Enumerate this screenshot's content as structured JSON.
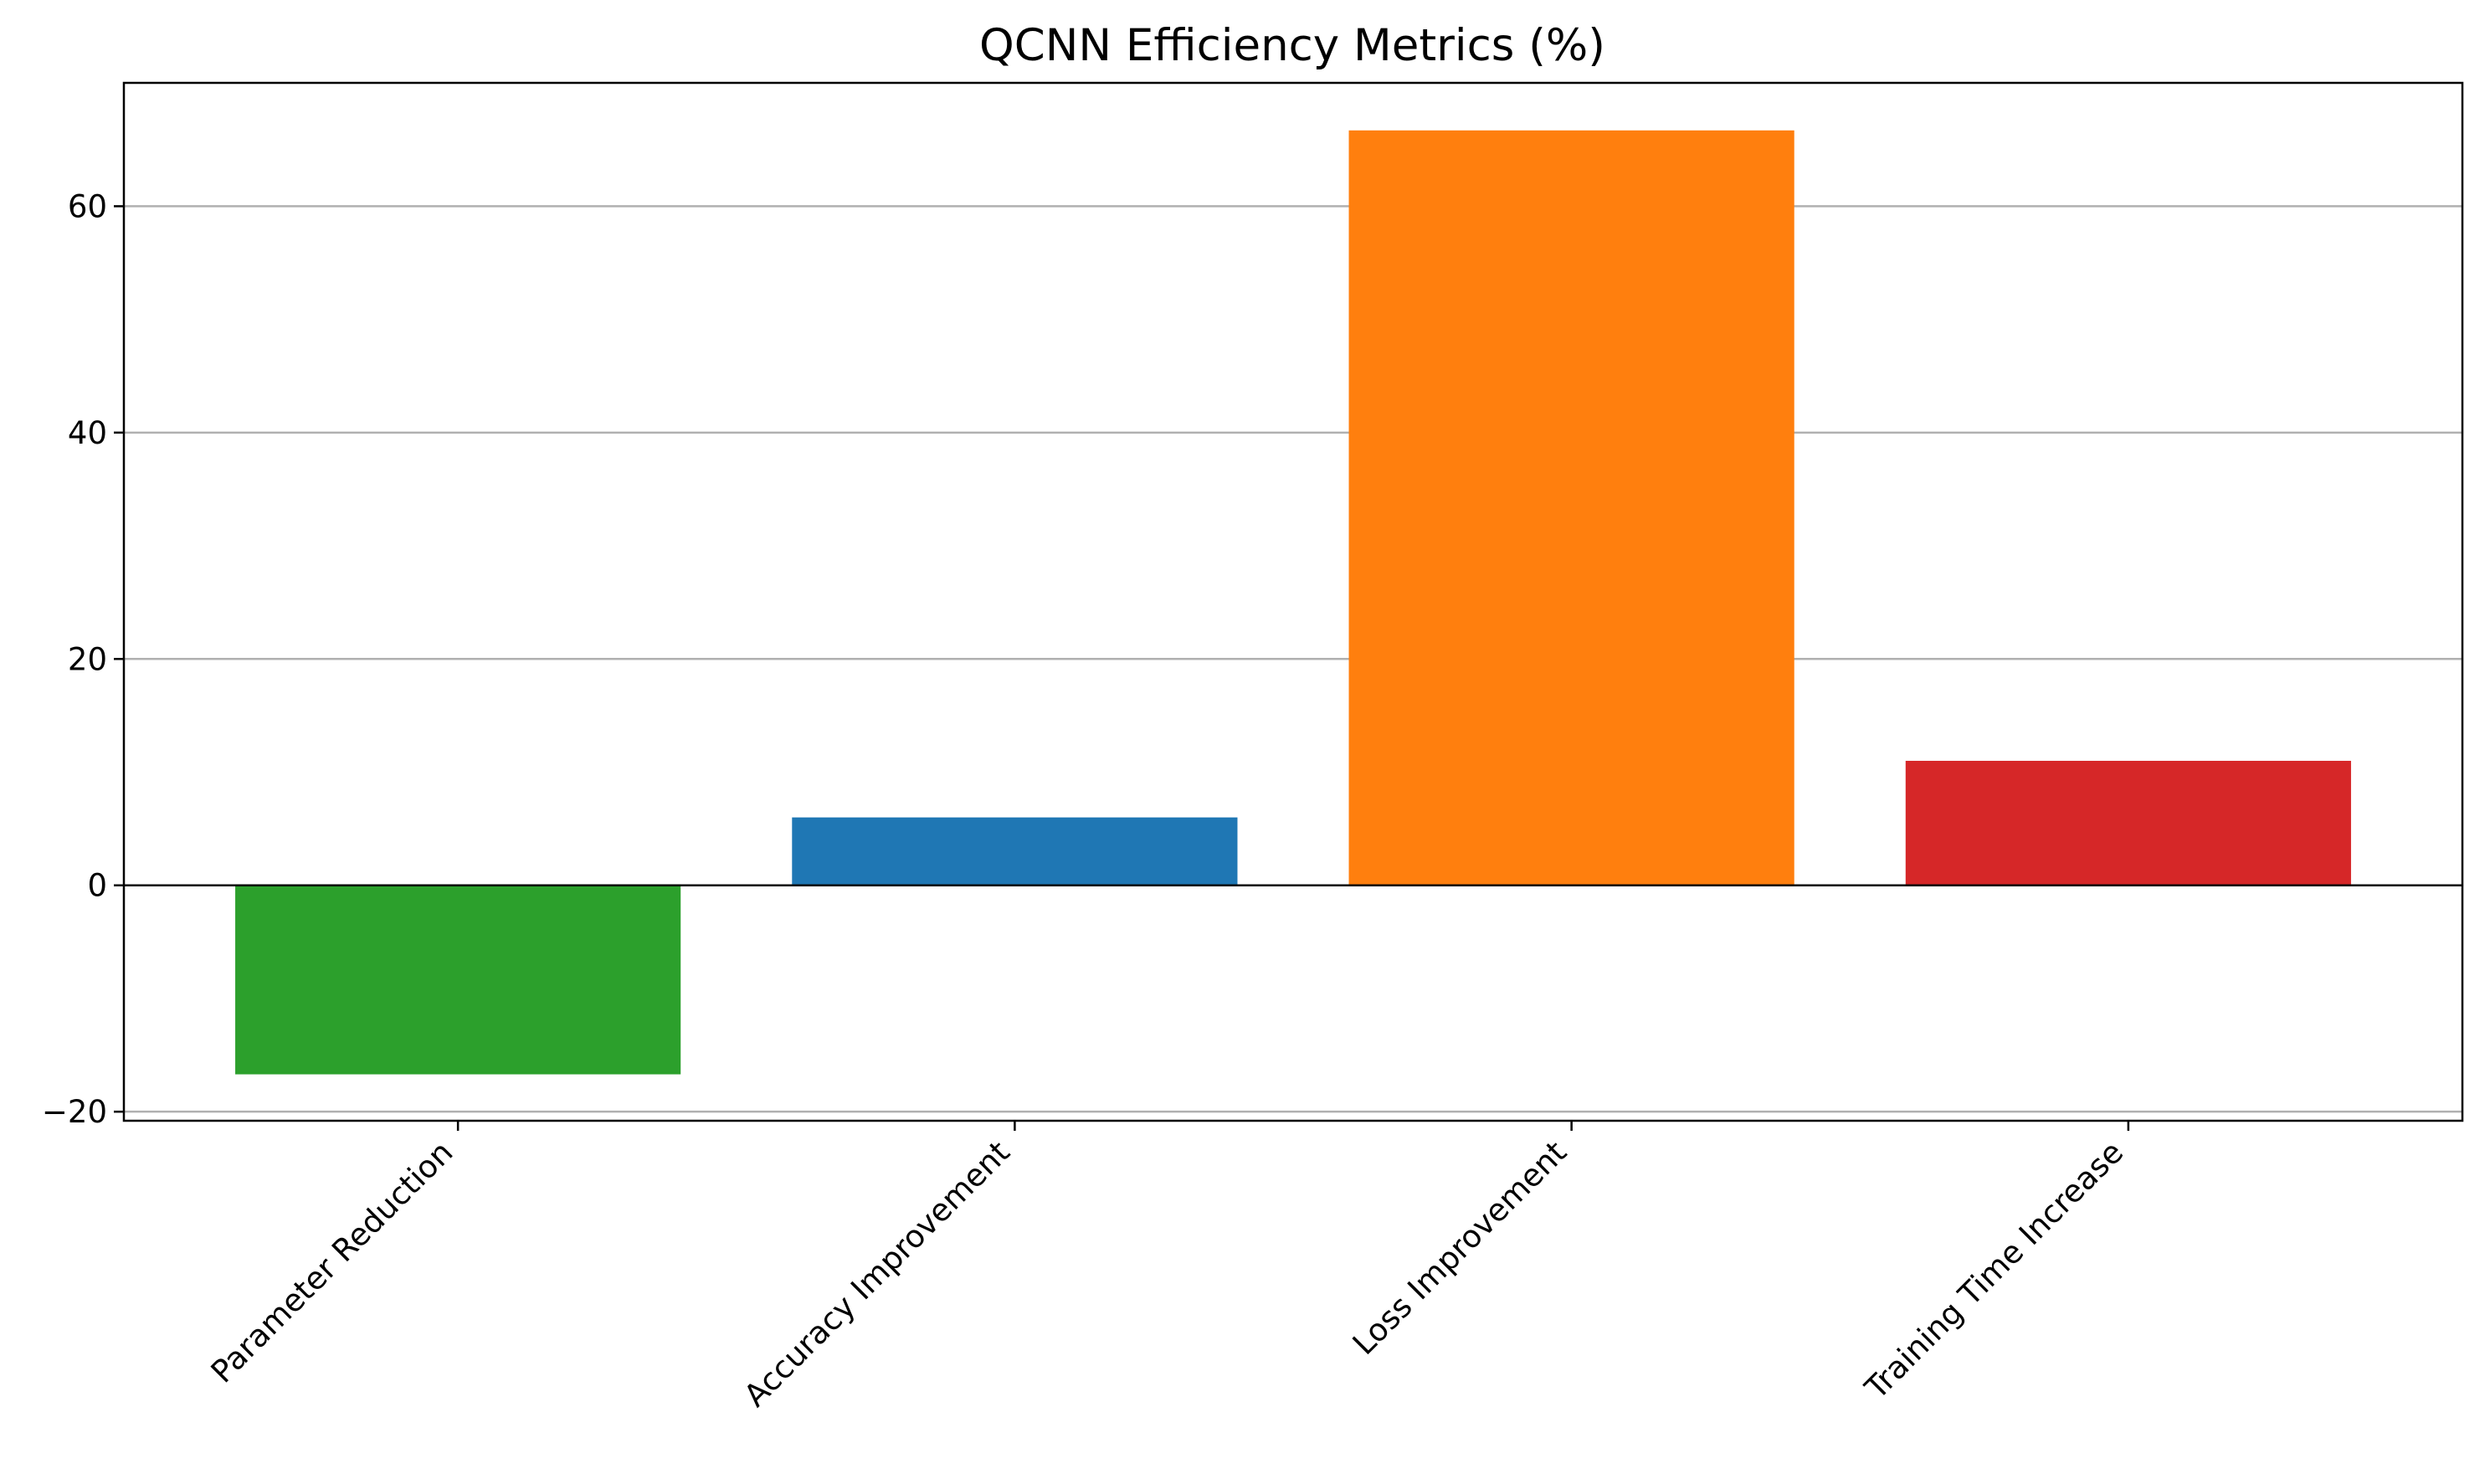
{
  "chart_data": {
    "type": "bar",
    "title": "QCNN Efficiency Metrics (%)",
    "xlabel": "",
    "ylabel": "",
    "categories": [
      "Parameter Reduction",
      "Accuracy Improvement",
      "Loss Improvement",
      "Training Time Increase"
    ],
    "values": [
      -16.7,
      6.0,
      66.7,
      11.0
    ],
    "colors": [
      "#2ca02c",
      "#1f77b4",
      "#ff7f0e",
      "#d62728"
    ],
    "ylim": [
      -20.8,
      70.9
    ],
    "yticks": [
      -20,
      0,
      20,
      40,
      60
    ],
    "ytick_labels": [
      "−20",
      "0",
      "20",
      "40",
      "60"
    ],
    "grid": "y",
    "zero_line": true,
    "legend": "none"
  }
}
